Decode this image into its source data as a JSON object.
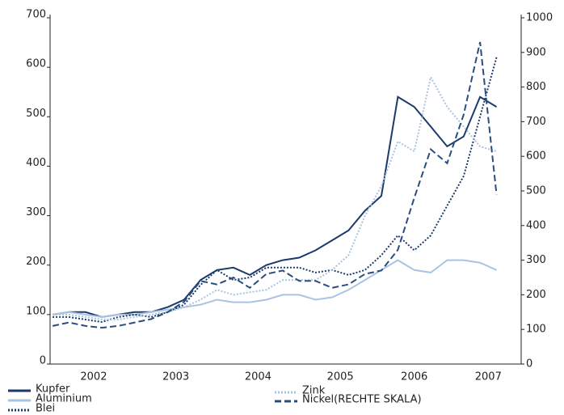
{
  "chart_data": {
    "type": "line",
    "x": [
      2002.0,
      2002.2,
      2002.4,
      2002.6,
      2002.8,
      2003.0,
      2003.2,
      2003.4,
      2003.6,
      2003.8,
      2004.0,
      2004.2,
      2004.4,
      2004.6,
      2004.8,
      2005.0,
      2005.2,
      2005.4,
      2005.6,
      2005.8,
      2006.0,
      2006.2,
      2006.4,
      2006.6,
      2006.8,
      2007.0,
      2007.2,
      2007.4
    ],
    "xlim": [
      2001.97,
      2007.7
    ],
    "xticks": [
      {
        "value": 2002.5,
        "label": "2002"
      },
      {
        "value": 2003.5,
        "label": "2003"
      },
      {
        "value": 2004.5,
        "label": "2004"
      },
      {
        "value": 2005.5,
        "label": "2005"
      },
      {
        "value": 2006.4,
        "label": "2006"
      },
      {
        "value": 2007.3,
        "label": "2007"
      }
    ],
    "ylim": [
      0,
      700
    ],
    "yticks": [
      0,
      100,
      200,
      300,
      400,
      500,
      600,
      700
    ],
    "y2lim": [
      0,
      1000
    ],
    "y2ticks": [
      0,
      100,
      200,
      300,
      400,
      500,
      600,
      700,
      800,
      900,
      1000
    ],
    "grid": false,
    "series": [
      {
        "name": "Kupfer",
        "color": "#1b3a6b",
        "style": "solid",
        "values": [
          100,
          105,
          105,
          95,
          100,
          105,
          105,
          115,
          130,
          170,
          190,
          195,
          180,
          200,
          210,
          215,
          230,
          250,
          270,
          310,
          340,
          540,
          520,
          480,
          440,
          460,
          540,
          520
        ]
      },
      {
        "name": "Aluminium",
        "color": "#a9c4e0",
        "style": "solid",
        "values": [
          100,
          105,
          100,
          95,
          100,
          100,
          105,
          110,
          115,
          120,
          130,
          125,
          125,
          130,
          140,
          140,
          130,
          135,
          150,
          170,
          190,
          210,
          190,
          185,
          210,
          210,
          205,
          190
        ]
      },
      {
        "name": "Blei",
        "color": "#1b3a6b",
        "style": "dotted",
        "values": [
          95,
          95,
          90,
          85,
          95,
          100,
          95,
          105,
          120,
          160,
          190,
          170,
          175,
          195,
          195,
          195,
          185,
          190,
          180,
          190,
          220,
          260,
          230,
          260,
          320,
          380,
          500,
          620
        ]
      },
      {
        "name": "Zink",
        "color": "#a9c4e0",
        "style": "dotted",
        "values": [
          100,
          100,
          95,
          90,
          90,
          95,
          100,
          105,
          115,
          130,
          150,
          140,
          145,
          150,
          170,
          170,
          170,
          190,
          220,
          300,
          360,
          450,
          430,
          580,
          520,
          480,
          440,
          430
        ]
      },
      {
        "name": "Nickel(RECHTE SKALA)",
        "color": "#2a4d80",
        "style": "dashed",
        "axis": "y2",
        "values": [
          110,
          120,
          110,
          105,
          110,
          120,
          130,
          150,
          180,
          240,
          230,
          250,
          220,
          260,
          270,
          240,
          240,
          220,
          230,
          260,
          270,
          330,
          480,
          620,
          580,
          720,
          930,
          490
        ]
      }
    ]
  }
}
